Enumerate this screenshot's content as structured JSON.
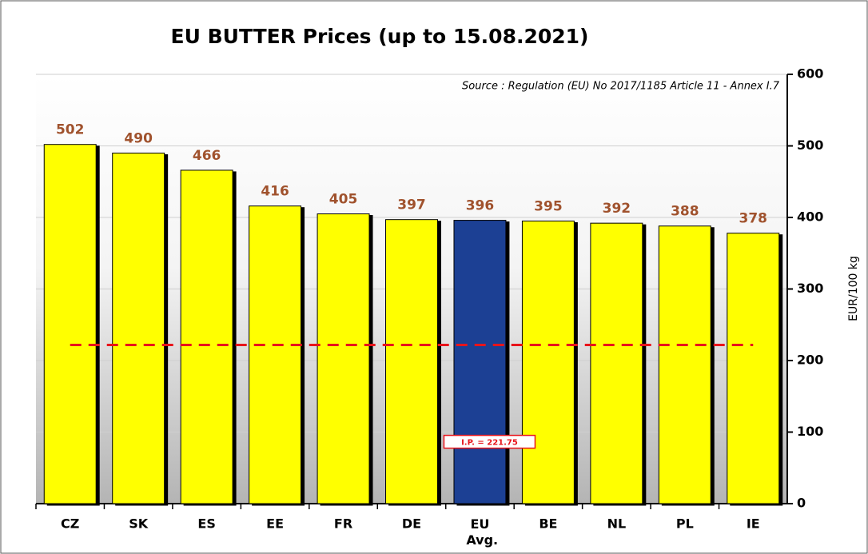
{
  "chart_data": {
    "type": "bar",
    "title": "EU  BUTTER Prices  (up to 15.08.2021)",
    "subtitle": "Source : Regulation (EU) No 2017/1185 Article 11 - Annex I.7",
    "y_label": "EUR/100 kg",
    "categories": [
      "CZ",
      "SK",
      "ES",
      "EE",
      "FR",
      "DE",
      "EU Avg.",
      "BE",
      "NL",
      "PL",
      "IE"
    ],
    "values": [
      502,
      490,
      466,
      416,
      405,
      397,
      396,
      395,
      392,
      388,
      378
    ],
    "colors": [
      "#ffff00",
      "#ffff00",
      "#ffff00",
      "#ffff00",
      "#ffff00",
      "#ffff00",
      "#1f3f94",
      "#ffff00",
      "#ffff00",
      "#ffff00",
      "#ffff00"
    ],
    "reference_line": {
      "value": 221.75,
      "label": "I.P. = 221.75",
      "color": "#e8141b"
    },
    "ylim": [
      0,
      600
    ],
    "yticks": [
      0,
      100,
      200,
      300,
      400,
      500,
      600
    ],
    "grid": true,
    "y_axis_side": "right"
  }
}
